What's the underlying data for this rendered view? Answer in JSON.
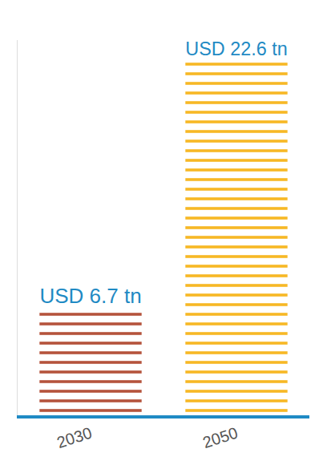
{
  "chart_data": {
    "type": "bar",
    "categories": [
      "2030",
      "2050"
    ],
    "values": [
      6.7,
      22.6
    ],
    "value_labels": [
      "USD 6.7 tn",
      "USD 22.6 tn"
    ],
    "colors": [
      "#b5533c",
      "#f7b825"
    ],
    "data_labels": true,
    "tick_labels": "x",
    "ylim": [
      0,
      24
    ],
    "grid": false
  }
}
